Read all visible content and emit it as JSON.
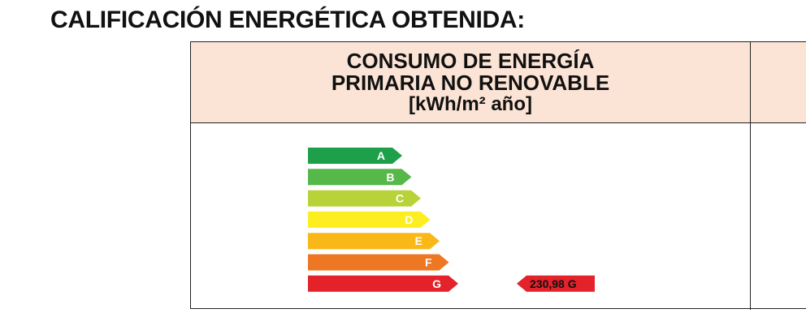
{
  "document": {
    "title": "CALIFICACIÓN ENERGÉTICA OBTENIDA:"
  },
  "table": {
    "header": {
      "line1": "CONSUMO DE ENERGÍA",
      "line2": "PRIMARIA NO RENOVABLE",
      "unit": "[kWh/m² año]"
    }
  },
  "energy_scale": {
    "classes": [
      {
        "letter": "A",
        "color": "#1ea04a"
      },
      {
        "letter": "B",
        "color": "#55b848"
      },
      {
        "letter": "C",
        "color": "#b8d33a"
      },
      {
        "letter": "D",
        "color": "#fcee20"
      },
      {
        "letter": "E",
        "color": "#f9b718"
      },
      {
        "letter": "F",
        "color": "#ee7723"
      },
      {
        "letter": "G",
        "color": "#e32229"
      }
    ],
    "result": {
      "value": "230,98",
      "class": "G",
      "color": "#e32229"
    }
  }
}
